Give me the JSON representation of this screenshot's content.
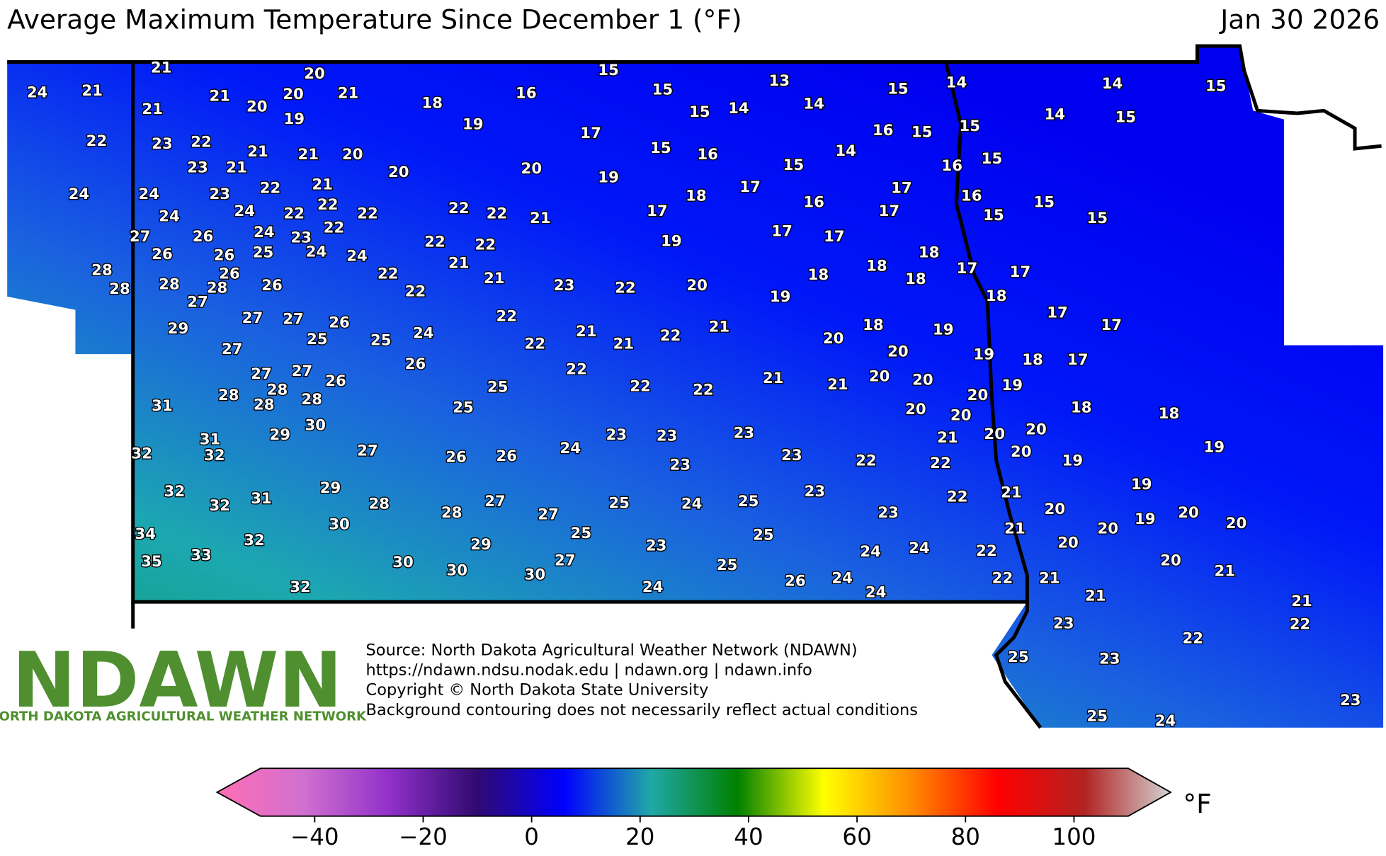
{
  "header": {
    "title": "Average Maximum Temperature Since December 1 (°F)",
    "date": "Jan 30 2026"
  },
  "logo": {
    "name": "NDAWN",
    "subtitle": "NORTH DAKOTA AGRICULTURAL WEATHER NETWORK"
  },
  "credits": [
    "Source: North Dakota Agricultural Weather Network (NDAWN)",
    "https://ndawn.ndsu.nodak.edu | ndawn.org | ndawn.info",
    "Copyright © North Dakota State University",
    "Background contouring does not necessarily reflect actual conditions"
  ],
  "stations": {
    "values": [
      24,
      21,
      21,
      20,
      21,
      21,
      20,
      20,
      21,
      19,
      18,
      16,
      15,
      15,
      19,
      17,
      15,
      14,
      13,
      14,
      15,
      14,
      16,
      15,
      15,
      14,
      15,
      14,
      15,
      22,
      23,
      22,
      23,
      21,
      21,
      21,
      20,
      20,
      20,
      19,
      15,
      16,
      15,
      14,
      16,
      15,
      24,
      24,
      23,
      22,
      21,
      22,
      22,
      22,
      24,
      24,
      22,
      22,
      21,
      17,
      18,
      17,
      16,
      17,
      17,
      16,
      15,
      15,
      15,
      27,
      26,
      24,
      23,
      22,
      22,
      22,
      19,
      17,
      17,
      26,
      26,
      25,
      24,
      24,
      21,
      18,
      28,
      28,
      28,
      28,
      26,
      27,
      26,
      22,
      22,
      21,
      23,
      22,
      20,
      19,
      18,
      18,
      18,
      17,
      17,
      18,
      29,
      27,
      27,
      26,
      25,
      25,
      24,
      22,
      22,
      21,
      21,
      22,
      21,
      20,
      18,
      19,
      17,
      17,
      27,
      20,
      19,
      18,
      17,
      27,
      27,
      28,
      26,
      26,
      22,
      22,
      22,
      21,
      21,
      20,
      20,
      19,
      20,
      31,
      28,
      28,
      28,
      25,
      25,
      20,
      20,
      18,
      18,
      30,
      29,
      31,
      23,
      23,
      23,
      21,
      20,
      20,
      32,
      32,
      27,
      26,
      26,
      24,
      23,
      23,
      22,
      22,
      20,
      19,
      19,
      32,
      32,
      31,
      29,
      23,
      22,
      21,
      19,
      28,
      28,
      27,
      27,
      25,
      24,
      25,
      23,
      20,
      19,
      20,
      34,
      30,
      32,
      25,
      25,
      21,
      20,
      20,
      20,
      35,
      33,
      29,
      23,
      24,
      24,
      22,
      30,
      30,
      27,
      25,
      20,
      21,
      32,
      30,
      24,
      26,
      24,
      24,
      22,
      21,
      21,
      21,
      23,
      22,
      22,
      25,
      23,
      23,
      25,
      24
    ]
  },
  "colorbar": {
    "lim": [
      -50,
      110
    ],
    "ticks": [
      {
        "value": -40,
        "label": "−40"
      },
      {
        "value": -20,
        "label": "−20"
      },
      0,
      20,
      40,
      60,
      80,
      100
    ],
    "unit": "°F",
    "colors": [
      "#ff6eb4",
      "#d070d0",
      "#9030c8",
      "#300a70",
      "#0000ff",
      "#20a8a8",
      "#008000",
      "#ffff00",
      "#ff8c00",
      "#ff0000",
      "#b22222",
      "#d3d3d3"
    ]
  }
}
